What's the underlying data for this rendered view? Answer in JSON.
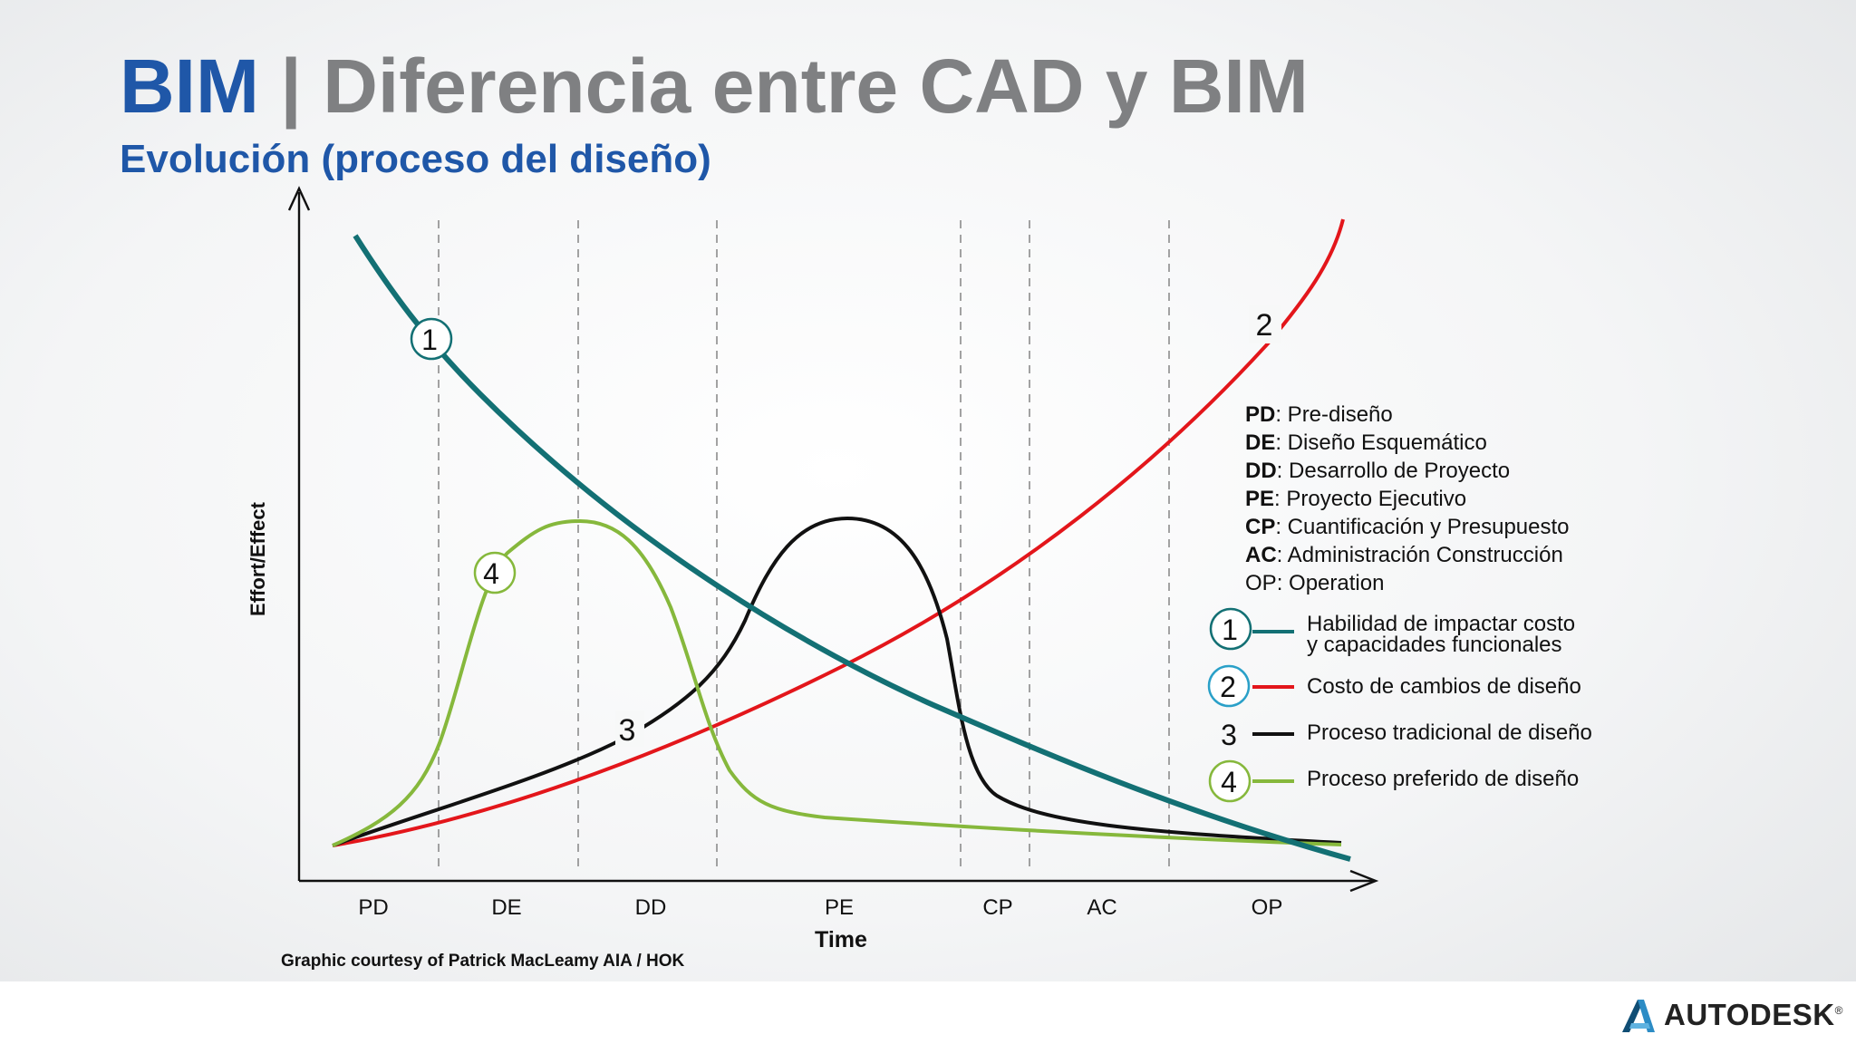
{
  "header": {
    "brand": "BIM",
    "separator": "|",
    "title": "Diferencia entre CAD y BIM",
    "subtitle": "Evolución (proceso del diseño)"
  },
  "axes": {
    "y_label": "Effort/Effect",
    "x_label": "Time"
  },
  "phases": [
    "PD",
    "DE",
    "DD",
    "PE",
    "CP",
    "AC",
    "OP"
  ],
  "glossary": [
    {
      "abbr": "PD",
      "text": ": Pre-diseño",
      "bold": true
    },
    {
      "abbr": "DE",
      "text": ": Diseño Esquemático",
      "bold": true
    },
    {
      "abbr": "DD",
      "text": ": Desarrollo de Proyecto",
      "bold": true
    },
    {
      "abbr": "PE",
      "text": ": Proyecto Ejecutivo",
      "bold": true
    },
    {
      "abbr": "CP",
      "text": ": Cuantificación y Presupuesto",
      "bold": true
    },
    {
      "abbr": "AC",
      "text": ": Administración Construcción",
      "bold": true
    },
    {
      "abbr": "OP",
      "text": ": Operation",
      "bold": false
    }
  ],
  "curves": [
    {
      "number": "1",
      "color": "#137074",
      "circled": true,
      "label_lines": [
        "Habilidad de impactar costo",
        "y capacidades funcionales"
      ]
    },
    {
      "number": "2",
      "color": "#e3161b",
      "circled": true,
      "label_lines": [
        "Costo de cambios de diseño"
      ]
    },
    {
      "number": "3",
      "color": "#111111",
      "circled": false,
      "label_lines": [
        "Proceso tradicional de diseño"
      ]
    },
    {
      "number": "4",
      "color": "#86b83c",
      "circled": true,
      "label_lines": [
        "Proceso preferido de diseño"
      ]
    }
  ],
  "credit": "Graphic courtesy of Patrick MacLeamy AIA / HOK",
  "logo": {
    "name": "autodesk-logo-icon",
    "text": "AUTODESK",
    "mark": "®"
  }
}
